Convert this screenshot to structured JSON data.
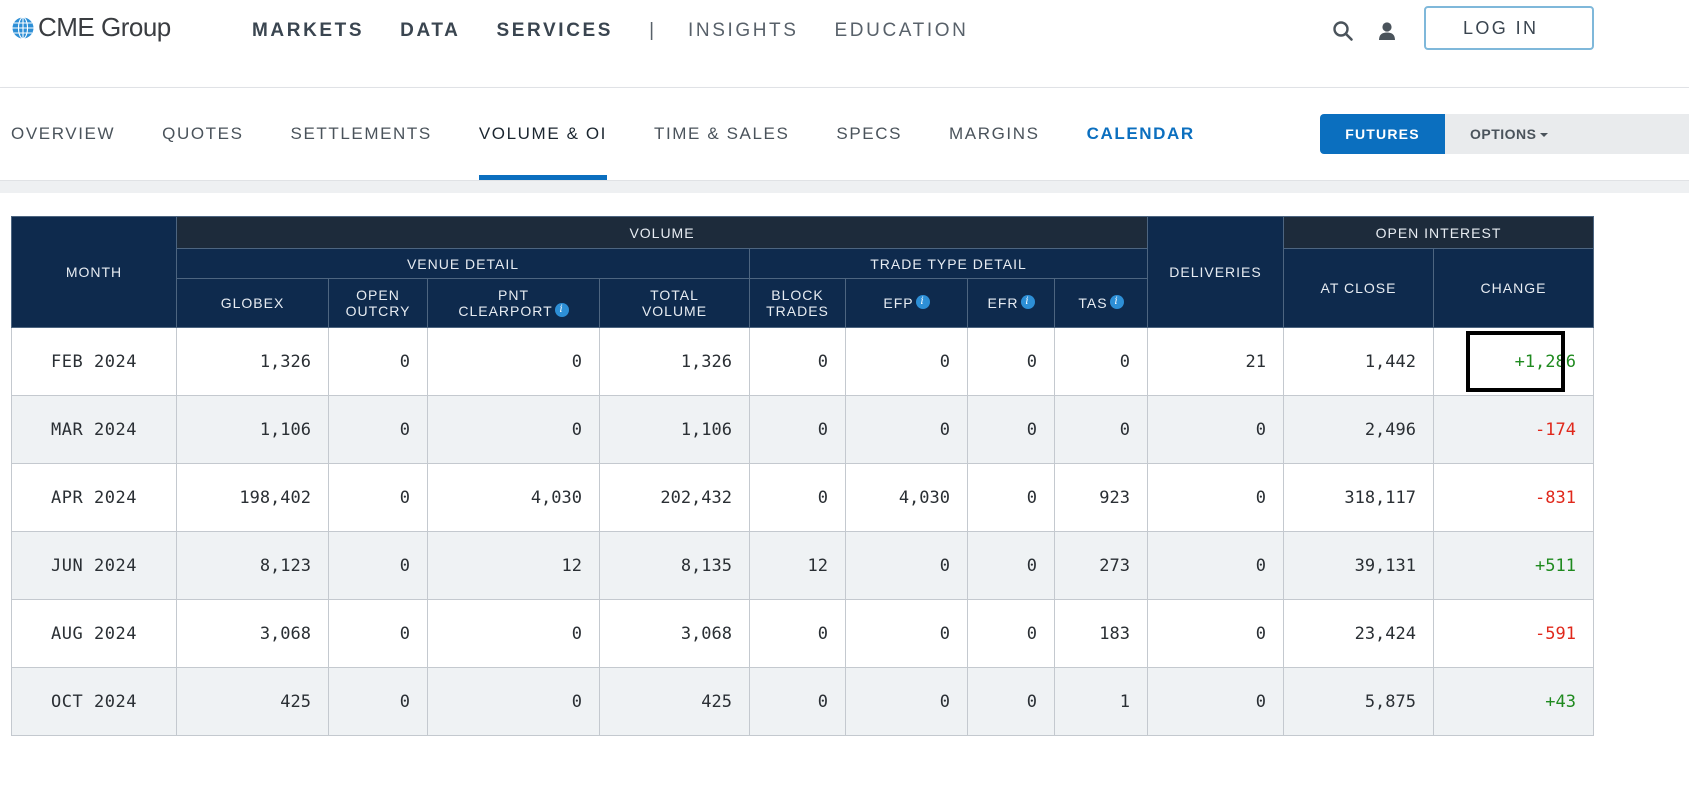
{
  "brand": "CME Group",
  "main_nav": [
    {
      "label": "MARKETS"
    },
    {
      "label": "DATA"
    },
    {
      "label": "SERVICES"
    },
    {
      "label": "|"
    },
    {
      "label": "INSIGHTS"
    },
    {
      "label": "EDUCATION"
    }
  ],
  "header_icons": [
    "search-icon",
    "user-icon"
  ],
  "login_label": "LOG IN",
  "sub_nav": [
    {
      "label": "OVERVIEW"
    },
    {
      "label": "QUOTES"
    },
    {
      "label": "SETTLEMENTS"
    },
    {
      "label": "VOLUME & OI"
    },
    {
      "label": "TIME & SALES"
    },
    {
      "label": "SPECS"
    },
    {
      "label": "MARGINS"
    },
    {
      "label": "CALENDAR"
    }
  ],
  "active_sub_tab": "VOLUME & OI",
  "futures_label": "FUTURES",
  "options_label": "OPTIONS",
  "table": {
    "headers": {
      "month": "MONTH",
      "volume": "VOLUME",
      "venue_detail": "VENUE DETAIL",
      "trade_type_detail": "TRADE TYPE DETAIL",
      "deliveries": "DELIVERIES",
      "open_interest": "OPEN INTEREST",
      "globex": "GLOBEX",
      "open_outcry_1": "OPEN",
      "open_outcry_2": "OUTCRY",
      "pnt_1": "PNT",
      "pnt_2": "CLEARPORT",
      "total_1": "TOTAL",
      "total_2": "VOLUME",
      "block_1": "BLOCK",
      "block_2": "TRADES",
      "efp": "EFP",
      "efr": "EFR",
      "tas": "TAS",
      "at_close": "AT CLOSE",
      "change": "CHANGE"
    },
    "rows": [
      {
        "month": "FEB 2024",
        "globex": "1,326",
        "open_outcry": "0",
        "pnt_clearport": "0",
        "total_volume": "1,326",
        "block_trades": "0",
        "efp": "0",
        "efr": "0",
        "tas": "0",
        "deliveries": "21",
        "at_close": "1,442",
        "change": "+1,286"
      },
      {
        "month": "MAR 2024",
        "globex": "1,106",
        "open_outcry": "0",
        "pnt_clearport": "0",
        "total_volume": "1,106",
        "block_trades": "0",
        "efp": "0",
        "efr": "0",
        "tas": "0",
        "deliveries": "0",
        "at_close": "2,496",
        "change": "-174"
      },
      {
        "month": "APR 2024",
        "globex": "198,402",
        "open_outcry": "0",
        "pnt_clearport": "4,030",
        "total_volume": "202,432",
        "block_trades": "0",
        "efp": "4,030",
        "efr": "0",
        "tas": "923",
        "deliveries": "0",
        "at_close": "318,117",
        "change": "-831"
      },
      {
        "month": "JUN 2024",
        "globex": "8,123",
        "open_outcry": "0",
        "pnt_clearport": "12",
        "total_volume": "8,135",
        "block_trades": "12",
        "efp": "0",
        "efr": "0",
        "tas": "273",
        "deliveries": "0",
        "at_close": "39,131",
        "change": "+511"
      },
      {
        "month": "AUG 2024",
        "globex": "3,068",
        "open_outcry": "0",
        "pnt_clearport": "0",
        "total_volume": "3,068",
        "block_trades": "0",
        "efp": "0",
        "efr": "0",
        "tas": "183",
        "deliveries": "0",
        "at_close": "23,424",
        "change": "-591"
      },
      {
        "month": "OCT 2024",
        "globex": "425",
        "open_outcry": "0",
        "pnt_clearport": "0",
        "total_volume": "425",
        "block_trades": "0",
        "efp": "0",
        "efr": "0",
        "tas": "1",
        "deliveries": "0",
        "at_close": "5,875",
        "change": "+43"
      }
    ]
  },
  "colors": {
    "header_bg": "#0e2a4d",
    "header_dark": "#1d2b3b",
    "accent_blue": "#0b6fbf",
    "positive": "#1f8a1f",
    "negative": "#e0281b",
    "alt_row": "#eff2f4"
  }
}
